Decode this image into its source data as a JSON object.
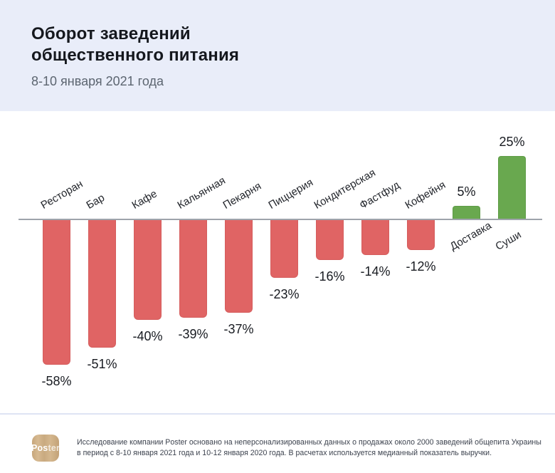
{
  "header": {
    "title": "Оборот заведений\nобщественного питания",
    "subtitle": "8-10 января 2021 года"
  },
  "chart_data": {
    "type": "bar",
    "title": "Оборот заведений общественного питания",
    "subtitle": "8-10 января 2021 года",
    "unit": "%",
    "categories": [
      "Ресторан",
      "Бар",
      "Кафе",
      "Кальянная",
      "Пекарня",
      "Пиццерия",
      "Кондитерская",
      "Фастфуд",
      "Кофейня",
      "Доставка",
      "Суши"
    ],
    "values": [
      -58,
      -51,
      -40,
      -39,
      -37,
      -23,
      -16,
      -14,
      -12,
      5,
      25
    ],
    "value_labels": [
      "-58%",
      "-51%",
      "-40%",
      "-39%",
      "-37%",
      "-23%",
      "-16%",
      "-14%",
      "-12%",
      "5%",
      "25%"
    ],
    "ylim": [
      -60,
      27
    ],
    "grid": false,
    "legend": false,
    "colors": {
      "negative": "#E06464",
      "positive": "#69A84F",
      "axis": "#9EA3AB"
    },
    "label_rotation_deg": -30
  },
  "footer": {
    "logo_text_bold": "Pos",
    "logo_text_light": "ter",
    "note": "Исследование компании Poster основано на неперсонализированных данных о продажах около 2000 заведений общепита Украины в период с 8-10 января 2021 года и 10-12 января 2020 года. В расчетах используется медианный показатель выручки."
  }
}
